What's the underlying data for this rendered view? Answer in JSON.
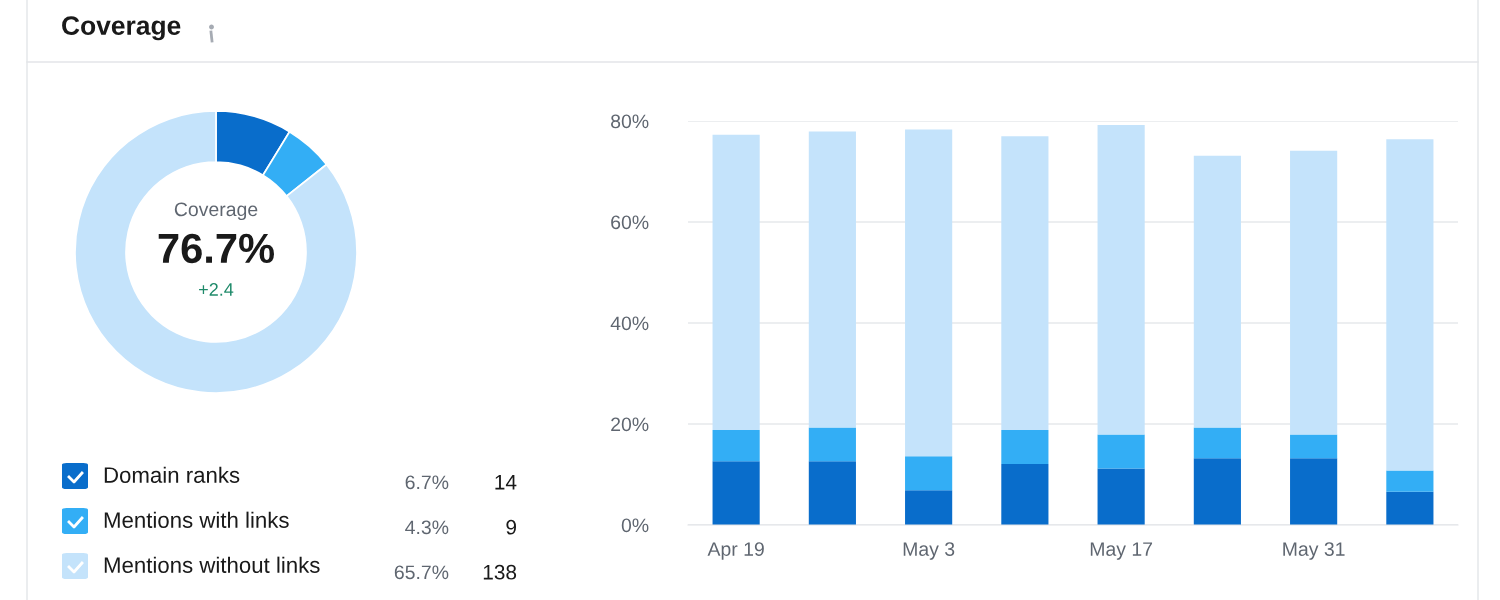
{
  "chart_data": [
    {
      "type": "donut",
      "title": "Coverage",
      "categories": [
        "Domain ranks",
        "Mentions with links",
        "Mentions without links"
      ],
      "values": [
        6.7,
        4.3,
        65.7
      ],
      "value_labels": [
        "6.7%",
        "4.3%",
        "65.7%"
      ],
      "colors": [
        "#096dcb",
        "#33aef5",
        "#c4e3fb"
      ],
      "legend": "bottom",
      "annotations": [
        "Coverage",
        "76.7%",
        "+2.4",
        {
          "text": "14",
          "x": "Domain ranks"
        },
        {
          "text": "9",
          "x": "Mentions with links"
        },
        {
          "text": "138",
          "x": "Mentions without links"
        }
      ]
    },
    {
      "type": "bar",
      "stacked": true,
      "categories": [
        "Apr 19",
        null,
        "May 3",
        null,
        "May 17",
        null,
        "May 31",
        null
      ],
      "series": [
        {
          "color": "#096dcb",
          "values": [
            12.6,
            12.6,
            6.9,
            12.1,
            11.2,
            13.2,
            13.2,
            6.6
          ]
        },
        {
          "color": "#33aef5",
          "values": [
            6.2,
            6.7,
            6.7,
            6.7,
            6.7,
            6.1,
            4.7,
            4.2
          ]
        },
        {
          "color": "#c4e3fb",
          "values": [
            58.5,
            58.6,
            64.7,
            58.2,
            61.3,
            53.8,
            56.2,
            65.6
          ]
        }
      ],
      "ylim": [
        0,
        80
      ],
      "yticks": [
        {
          "value": 0,
          "label": "0%"
        },
        {
          "value": 20,
          "label": "20%"
        },
        {
          "value": 40,
          "label": "40%"
        },
        {
          "value": 60,
          "label": "60%"
        },
        {
          "value": 80,
          "label": "80%"
        }
      ],
      "grid": "y"
    }
  ]
}
